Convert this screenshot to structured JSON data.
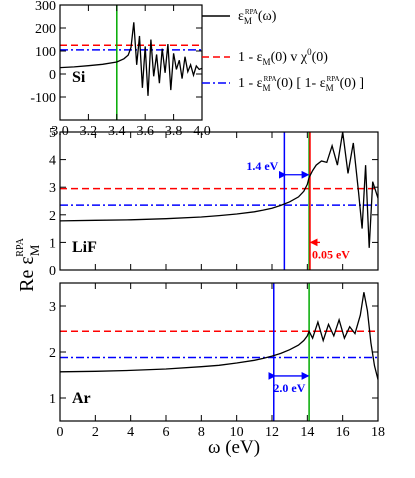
{
  "chart_data": [
    {
      "id": "si",
      "type": "line",
      "panel_label": "Si",
      "xlim": [
        3.0,
        4.0
      ],
      "ylim": [
        -200,
        300
      ],
      "x_ticks": [
        "3.0",
        "3.2",
        "3.4",
        "3.6",
        "3.8",
        "4.0"
      ],
      "y_ticks": [
        "-100",
        "0",
        "100",
        "200",
        "300"
      ],
      "x_tick_values": [
        3.0,
        3.2,
        3.4,
        3.6,
        3.8,
        4.0
      ],
      "y_tick_values": [
        -100,
        0,
        100,
        200,
        300
      ],
      "hlines": [
        {
          "style": "red-dashed",
          "y": 125
        },
        {
          "style": "blue-dashdot",
          "y": 105
        }
      ],
      "vlines": [
        {
          "color": "#00aa00",
          "x": 3.4
        }
      ],
      "series": [
        {
          "style": "black",
          "x": [
            3.0,
            3.1,
            3.2,
            3.3,
            3.4,
            3.45,
            3.48,
            3.5,
            3.52,
            3.54,
            3.56,
            3.58,
            3.6,
            3.62,
            3.64,
            3.66,
            3.68,
            3.7,
            3.72,
            3.74,
            3.76,
            3.78,
            3.8,
            3.82,
            3.84,
            3.86,
            3.88,
            3.9,
            3.92,
            3.94,
            3.96,
            3.98,
            4.0
          ],
          "y": [
            28,
            31,
            36,
            42,
            52,
            66,
            82,
            115,
            225,
            40,
            165,
            -60,
            120,
            -95,
            150,
            -10,
            85,
            -40,
            110,
            5,
            130,
            -70,
            90,
            20,
            60,
            -20,
            75,
            10,
            40,
            -5,
            35,
            20,
            25
          ]
        }
      ]
    },
    {
      "id": "lif",
      "type": "line",
      "panel_label": "LiF",
      "xlim": [
        0,
        18
      ],
      "ylim": [
        0,
        5
      ],
      "y_ticks": [
        "0",
        "1",
        "2",
        "3",
        "4",
        "5"
      ],
      "y_tick_values": [
        0,
        1,
        2,
        3,
        4,
        5
      ],
      "x_tick_values": [
        0,
        2,
        4,
        6,
        8,
        10,
        12,
        14,
        16,
        18
      ],
      "hlines": [
        {
          "style": "red-dashed",
          "y": 2.95
        },
        {
          "style": "blue-dashdot",
          "y": 2.35
        }
      ],
      "vlines": [
        {
          "color": "#0000ff",
          "x": 12.7
        },
        {
          "color": "#00aa00",
          "x": 14.1
        },
        {
          "color": "#ff0000",
          "x": 14.15
        }
      ],
      "annotations": [
        {
          "text": "1.4 eV",
          "color": "#0000ff",
          "x_from": 12.7,
          "x_to": 14.1,
          "y": 3.45
        },
        {
          "text": "0.05 eV",
          "color": "#ff0000",
          "x_from": 14.1,
          "x_to": 14.15,
          "y": 1.0
        }
      ],
      "series": [
        {
          "style": "black",
          "x": [
            0,
            2,
            4,
            6,
            8,
            9,
            10,
            11,
            11.5,
            12,
            12.5,
            13,
            13.5,
            13.8,
            14.0,
            14.1,
            14.3,
            14.5,
            14.8,
            15.1,
            15.4,
            15.7,
            16.0,
            16.3,
            16.6,
            16.9,
            17.1,
            17.3,
            17.5,
            17.7,
            18.0
          ],
          "y": [
            1.78,
            1.8,
            1.82,
            1.86,
            1.92,
            1.97,
            2.03,
            2.11,
            2.17,
            2.24,
            2.34,
            2.47,
            2.65,
            2.85,
            3.1,
            3.35,
            3.6,
            3.8,
            3.95,
            3.9,
            4.5,
            3.8,
            5.0,
            3.5,
            4.6,
            2.8,
            1.5,
            3.8,
            0.8,
            3.2,
            2.6
          ]
        }
      ]
    },
    {
      "id": "ar",
      "type": "line",
      "panel_label": "Ar",
      "xlim": [
        0,
        18
      ],
      "ylim": [
        0.5,
        3.5
      ],
      "x_ticks": [
        "0",
        "2",
        "4",
        "6",
        "8",
        "10",
        "12",
        "14",
        "16",
        "18"
      ],
      "y_ticks": [
        "1",
        "2",
        "3"
      ],
      "x_tick_values": [
        0,
        2,
        4,
        6,
        8,
        10,
        12,
        14,
        16,
        18
      ],
      "y_tick_values": [
        1,
        2,
        3
      ],
      "hlines": [
        {
          "style": "red-dashed",
          "y": 2.45
        },
        {
          "style": "blue-dashdot",
          "y": 1.88
        }
      ],
      "vlines": [
        {
          "color": "#0000ff",
          "x": 12.1
        },
        {
          "color": "#00aa00",
          "x": 14.1
        }
      ],
      "annotations": [
        {
          "text": "2.0 eV",
          "color": "#0000ff",
          "x_from": 12.1,
          "x_to": 14.1,
          "y": 1.48
        }
      ],
      "series": [
        {
          "style": "black",
          "x": [
            0,
            2,
            4,
            6,
            8,
            9,
            10,
            11,
            11.5,
            12,
            12.5,
            13,
            13.5,
            13.8,
            14.0,
            14.1,
            14.3,
            14.6,
            14.9,
            15.2,
            15.5,
            15.8,
            16.1,
            16.4,
            16.7,
            17.0,
            17.2,
            17.4,
            17.6,
            17.8,
            18.0
          ],
          "y": [
            1.57,
            1.58,
            1.6,
            1.63,
            1.68,
            1.71,
            1.76,
            1.82,
            1.86,
            1.91,
            1.97,
            2.05,
            2.15,
            2.25,
            2.35,
            2.45,
            2.3,
            2.65,
            2.25,
            2.6,
            2.35,
            2.7,
            2.3,
            2.55,
            2.4,
            2.8,
            3.3,
            2.9,
            2.2,
            1.7,
            1.4
          ]
        }
      ]
    }
  ],
  "ylabel_main": "Re ε",
  "ylabel_main_sub": "M",
  "ylabel_main_sup": "RPA",
  "xlabel": "ω (eV)",
  "legend": [
    {
      "style": "black",
      "pre": "ε",
      "sub": "M",
      "sup": "RPA",
      "post": "(ω)"
    },
    {
      "style": "red-dashed",
      "pre": "1 - ε",
      "sub": "M",
      "post": "(0) v χ",
      "sup2": "0",
      "post2": "(0)"
    },
    {
      "style": "blue-dashdot",
      "pre": "1 - ε",
      "sub": "M",
      "sup": "RPA",
      "post": "(0) [ 1- ε",
      "sub2": "M",
      "sup2": "RPA",
      "post2": "(0) ]"
    }
  ],
  "colors": {
    "black": "#000000",
    "red": "#ff0000",
    "blue": "#0000ff",
    "green": "#00aa00"
  }
}
